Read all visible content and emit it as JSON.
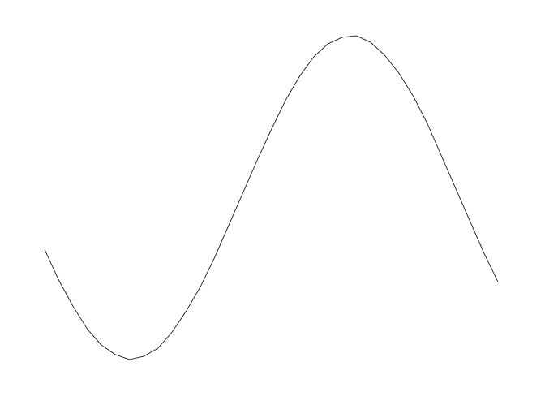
{
  "chart_data": {
    "type": "line",
    "x": [
      0,
      1,
      2,
      3,
      4,
      5,
      6,
      7,
      8,
      9,
      10,
      11,
      12,
      13,
      14,
      15,
      16,
      17,
      18,
      19,
      20,
      21,
      22,
      23,
      24,
      25,
      26,
      27,
      28,
      29,
      30,
      31,
      32
    ],
    "values": [
      -0.32,
      -0.51,
      -0.67,
      -0.81,
      -0.91,
      -0.97,
      -1.0,
      -0.98,
      -0.93,
      -0.83,
      -0.7,
      -0.55,
      -0.37,
      -0.17,
      0.03,
      0.23,
      0.42,
      0.6,
      0.75,
      0.87,
      0.95,
      0.99,
      1.0,
      0.96,
      0.88,
      0.77,
      0.63,
      0.46,
      0.26,
      0.06,
      -0.14,
      -0.34,
      -0.52
    ],
    "color": "#000000",
    "xlim": [
      0,
      32
    ],
    "ylim": [
      -1,
      1
    ]
  }
}
